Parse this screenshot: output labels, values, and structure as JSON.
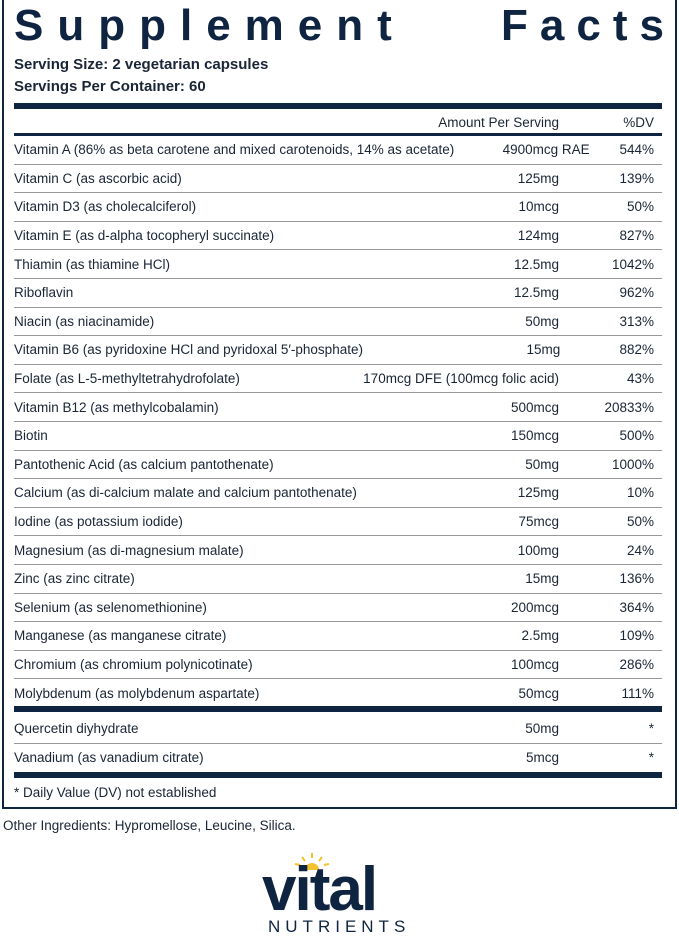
{
  "title": {
    "word1": "Supplement",
    "word2": "Facts"
  },
  "serving_size": "Serving Size: 2 vegetarian capsules",
  "servings_per_container": "Servings Per Container: 60",
  "header": {
    "amount": "Amount Per Serving",
    "dv": "%DV"
  },
  "rows": [
    {
      "name": "Vitamin A (86% as beta carotene and mixed carotenoids, 14% as acetate)",
      "amount": "4900mcg RAE",
      "dv": "544%"
    },
    {
      "name": "Vitamin C (as ascorbic acid)",
      "amount": "125mg",
      "dv": "139%"
    },
    {
      "name": "Vitamin D3 (as cholecalciferol)",
      "amount": "10mcg",
      "dv": "50%"
    },
    {
      "name": "Vitamin E (as d-alpha tocopheryl succinate)",
      "amount": "124mg",
      "dv": "827%"
    },
    {
      "name": "Thiamin (as thiamine HCl)",
      "amount": "12.5mg",
      "dv": "1042%"
    },
    {
      "name": "Riboflavin",
      "amount": "12.5mg",
      "dv": "962%"
    },
    {
      "name": "Niacin (as niacinamide)",
      "amount": "50mg",
      "dv": "313%"
    },
    {
      "name": "Vitamin B6 (as pyridoxine HCl and pyridoxal 5′-phosphate)",
      "amount": "15mg",
      "dv": "882%"
    },
    {
      "name": "Folate (as L-5-methyltetrahydrofolate)",
      "amount": "170mcg DFE (100mcg folic acid)",
      "dv": "43%"
    },
    {
      "name": "Vitamin B12 (as methylcobalamin)",
      "amount": "500mcg",
      "dv": "20833%"
    },
    {
      "name": "Biotin",
      "amount": "150mcg",
      "dv": "500%"
    },
    {
      "name": "Pantothenic Acid (as calcium pantothenate)",
      "amount": "50mg",
      "dv": "1000%"
    },
    {
      "name": "Calcium (as di-calcium malate and calcium pantothenate)",
      "amount": "125mg",
      "dv": "10%"
    },
    {
      "name": "Iodine (as potassium iodide)",
      "amount": "75mcg",
      "dv": "50%"
    },
    {
      "name": "Magnesium (as di-magnesium malate)",
      "amount": "100mg",
      "dv": "24%"
    },
    {
      "name": "Zinc (as zinc citrate)",
      "amount": "15mg",
      "dv": "136%"
    },
    {
      "name": "Selenium (as selenomethionine)",
      "amount": "200mcg",
      "dv": "364%"
    },
    {
      "name": "Manganese (as manganese citrate)",
      "amount": "2.5mg",
      "dv": "109%"
    },
    {
      "name": "Chromium (as chromium polynicotinate)",
      "amount": "100mcg",
      "dv": "286%"
    },
    {
      "name": "Molybdenum (as molybdenum aspartate)",
      "amount": "50mcg",
      "dv": "111%"
    }
  ],
  "other_rows": [
    {
      "name": "Quercetin diyhydrate",
      "amount": "50mg",
      "dv": "*"
    },
    {
      "name": "Vanadium (as vanadium citrate)",
      "amount": "5mcg",
      "dv": "*"
    }
  ],
  "footnote": "* Daily Value (DV) not established",
  "other_ingredients": "Other Ingredients: Hypromellose, Leucine, Silica.",
  "logo": {
    "word": "vital",
    "sub": "NUTRIENTS",
    "sun_color": "#f2c230",
    "brand_color": "#0f2440"
  }
}
